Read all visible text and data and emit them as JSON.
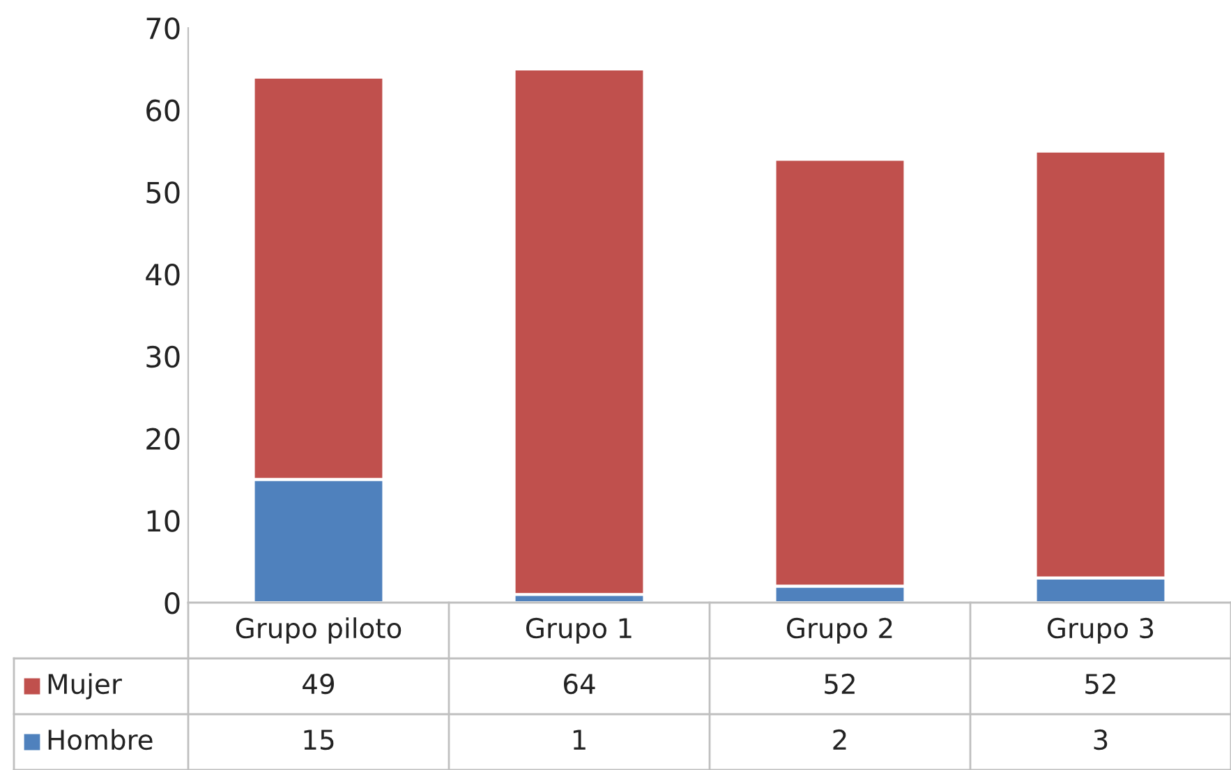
{
  "chart_data": {
    "type": "bar",
    "stacked": true,
    "categories": [
      "Grupo piloto",
      "Grupo 1",
      "Grupo 2",
      "Grupo 3"
    ],
    "series": [
      {
        "name": "Hombre",
        "color": "#4f81bd",
        "values": [
          15,
          1,
          2,
          3
        ]
      },
      {
        "name": "Mujer",
        "color": "#c0504d",
        "values": [
          49,
          64,
          52,
          52
        ]
      }
    ],
    "ylim": [
      0,
      70
    ],
    "yticks": [
      0,
      10,
      20,
      30,
      40,
      50,
      60,
      70
    ],
    "grid": false,
    "data_labels": true,
    "legend": "bottom left"
  }
}
